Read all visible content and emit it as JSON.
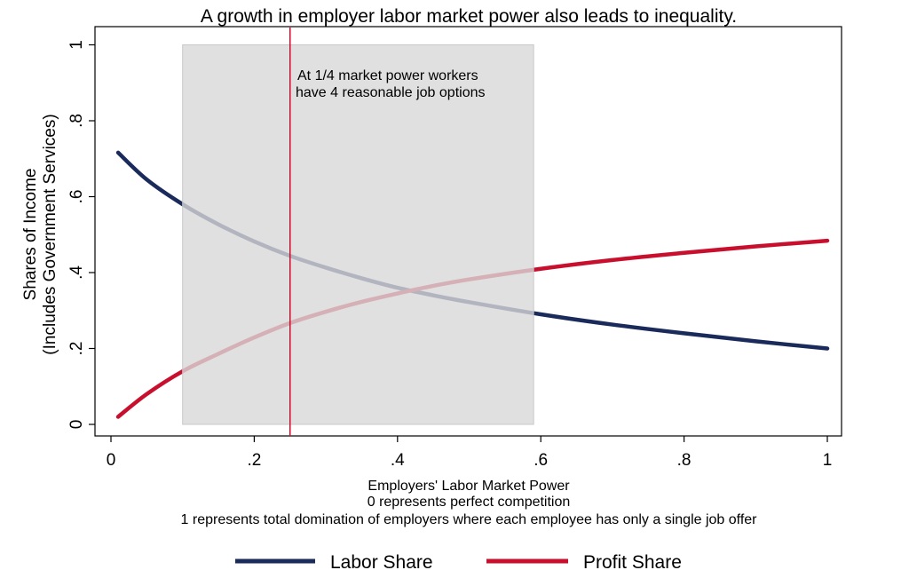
{
  "chart_data": {
    "type": "line",
    "title": "A growth in employer labor market power also leads to inequality.",
    "xlabel": [
      "Employers' Labor Market Power",
      "0 represents perfect competition",
      "1 represents total domination of employers where each employee has only a single job offer"
    ],
    "ylabel": [
      "Shares of Income",
      "(Includes Government Services)"
    ],
    "xlim": [
      0,
      1
    ],
    "ylim": [
      0,
      1
    ],
    "x_ticks": [
      0,
      0.2,
      0.4,
      0.6,
      0.8,
      1
    ],
    "x_tick_labels": [
      "0",
      ".2",
      ".4",
      ".6",
      ".8",
      "1"
    ],
    "y_ticks": [
      0,
      0.2,
      0.4,
      0.6,
      0.8,
      1
    ],
    "y_tick_labels": [
      "0",
      ".2",
      ".4",
      ".6",
      ".8",
      "1"
    ],
    "grid": false,
    "legend_position": "bottom",
    "x": [
      0.01,
      0.05,
      0.1,
      0.15,
      0.2,
      0.25,
      0.3,
      0.35,
      0.4,
      0.45,
      0.5,
      0.6,
      0.7,
      0.8,
      0.9,
      1.0
    ],
    "series": [
      {
        "name": "Labor Share",
        "color": "#1a2a5a",
        "values": [
          0.716,
          0.645,
          0.58,
          0.527,
          0.482,
          0.444,
          0.413,
          0.385,
          0.36,
          0.34,
          0.322,
          0.29,
          0.263,
          0.24,
          0.219,
          0.2
        ]
      },
      {
        "name": "Profit Share",
        "color": "#c8102e",
        "values": [
          0.02,
          0.08,
          0.14,
          0.186,
          0.229,
          0.267,
          0.297,
          0.323,
          0.345,
          0.365,
          0.382,
          0.41,
          0.433,
          0.452,
          0.469,
          0.484
        ]
      }
    ],
    "shaded_region": {
      "x": [
        0.1,
        0.59
      ],
      "y": [
        0,
        1
      ],
      "color": "#d8d8d8"
    },
    "vertical_line": {
      "x": 0.25,
      "color": "#c8102e"
    },
    "annotation": [
      "At 1/4 market power workers",
      "have 4 reasonable job options"
    ]
  }
}
